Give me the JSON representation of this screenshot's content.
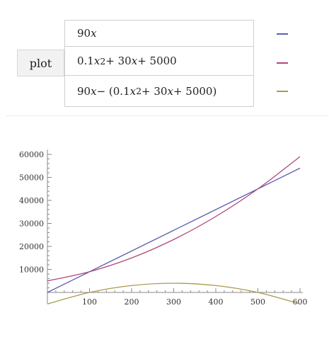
{
  "controls": {
    "plot_label": "plot"
  },
  "functions": [
    {
      "expr_html": "90 <i>x</i>",
      "color": "#5d5fb0"
    },
    {
      "expr_html": "0.1 <i>x</i><sup>2</sup> + 30 <i>x</i> + 5000",
      "color": "#b0487a"
    },
    {
      "expr_html": "90 <i>x</i> − (0.1 <i>x</i><sup>2</sup> + 30 <i>x</i> + 5000)",
      "color": "#a99a4e"
    }
  ],
  "chart_data": {
    "type": "line",
    "title": "",
    "xlabel": "",
    "ylabel": "",
    "xlim": [
      0,
      600
    ],
    "ylim": [
      -5000,
      62000
    ],
    "x_ticks": [
      100,
      200,
      300,
      400,
      500,
      600
    ],
    "y_ticks": [
      10000,
      20000,
      30000,
      40000,
      50000,
      60000
    ],
    "x_tick_labels": [
      "100",
      "200",
      "300",
      "400",
      "500",
      "600"
    ],
    "y_tick_labels": [
      "10000",
      "20000",
      "30000",
      "40000",
      "50000",
      "60000"
    ],
    "grid": false,
    "series": [
      {
        "color": "#5d5fb0",
        "x": [
          0,
          100,
          200,
          300,
          400,
          500,
          600
        ],
        "y": [
          0,
          9000,
          18000,
          27000,
          36000,
          45000,
          54000
        ]
      },
      {
        "color": "#b0487a",
        "x": [
          0,
          100,
          200,
          300,
          400,
          500,
          600
        ],
        "y": [
          5000,
          9000,
          15000,
          23000,
          33000,
          45000,
          59000
        ]
      },
      {
        "color": "#a99a4e",
        "x": [
          0,
          100,
          200,
          300,
          400,
          500,
          600
        ],
        "y": [
          -5000,
          0,
          3000,
          4000,
          3000,
          0,
          -5000
        ]
      }
    ]
  }
}
